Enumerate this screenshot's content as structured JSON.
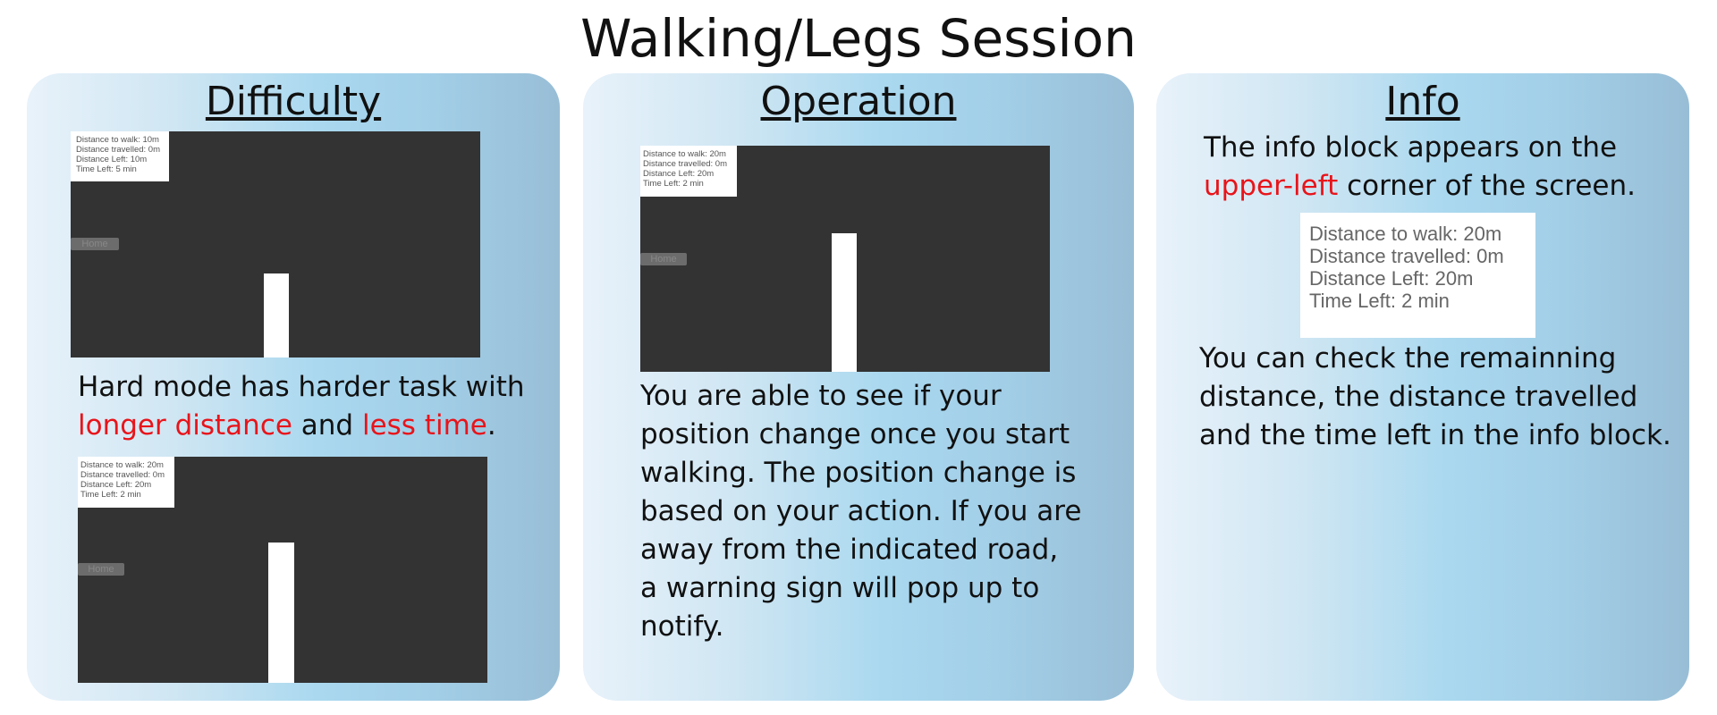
{
  "page_title": "Walking/Legs Session",
  "difficulty": {
    "heading": "Difficulty",
    "easy_shot": {
      "info": [
        "Distance to walk: 10m",
        "Distance travelled: 0m",
        "Distance Left: 10m",
        "Time Left: 5 min"
      ],
      "home_label": "Home"
    },
    "text_part1": "Hard mode has harder task with",
    "text_red1": "longer distance",
    "text_and": " and ",
    "text_red2": "less time",
    "text_end": ".",
    "hard_shot": {
      "info": [
        "Distance to walk: 20m",
        "Distance travelled: 0m",
        "Distance Left: 20m",
        "Time Left: 2 min"
      ],
      "home_label": "Home"
    }
  },
  "operation": {
    "heading": "Operation",
    "shot": {
      "info": [
        "Distance to walk: 20m",
        "Distance travelled: 0m",
        "Distance Left: 20m",
        "Time Left: 2 min"
      ],
      "home_label": "Home"
    },
    "lines": [
      "You are able to see if your",
      "position change once you start",
      "walking. The position change is",
      "based on your action. If you are",
      "away from the indicated road,",
      "a warning sign will pop up to",
      "notify."
    ]
  },
  "info": {
    "heading": "Info",
    "intro_line1": "The info block appears on the",
    "intro_red": "upper-left",
    "intro_line2_rest": " corner of the screen.",
    "block": [
      "Distance to walk: 20m",
      "Distance travelled: 0m",
      "Distance Left: 20m",
      "Time Left: 2 min"
    ],
    "lines": [
      "You can check the remainning",
      "distance, the distance travelled",
      "and the time left in the info block."
    ]
  },
  "colors": {
    "highlight": "#e8141a",
    "screen_bg": "#333333"
  }
}
